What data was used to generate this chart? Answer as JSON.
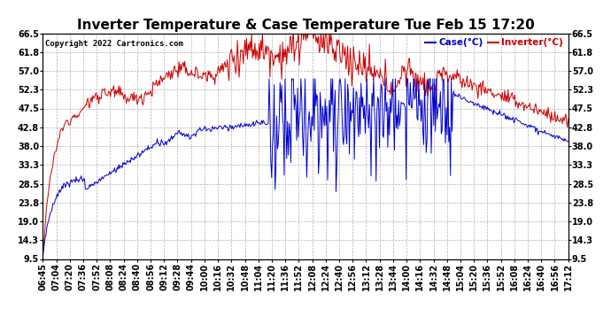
{
  "title": "Inverter Temperature & Case Temperature Tue Feb 15 17:20",
  "copyright": "Copyright 2022 Cartronics.com",
  "legend_case": "Case(°C)",
  "legend_inverter": "Inverter(°C)",
  "yticks": [
    9.5,
    14.3,
    19.0,
    23.8,
    28.5,
    33.3,
    38.0,
    42.8,
    47.5,
    52.3,
    57.0,
    61.8,
    66.5
  ],
  "ylim": [
    9.5,
    66.5
  ],
  "color_case": "#0000cc",
  "color_inverter": "#cc0000",
  "background_color": "#ffffff",
  "grid_color": "#b0b0b0",
  "title_fontsize": 11,
  "tick_fontsize": 7,
  "xtick_labels": [
    "06:45",
    "07:04",
    "07:20",
    "07:36",
    "07:52",
    "08:08",
    "08:24",
    "08:40",
    "08:56",
    "09:12",
    "09:28",
    "09:44",
    "10:00",
    "10:16",
    "10:32",
    "10:48",
    "11:04",
    "11:20",
    "11:36",
    "11:52",
    "12:08",
    "12:24",
    "12:40",
    "12:56",
    "13:12",
    "13:28",
    "13:44",
    "14:00",
    "14:16",
    "14:32",
    "14:48",
    "15:04",
    "15:20",
    "15:36",
    "15:52",
    "16:08",
    "16:24",
    "16:40",
    "16:56",
    "17:12"
  ]
}
